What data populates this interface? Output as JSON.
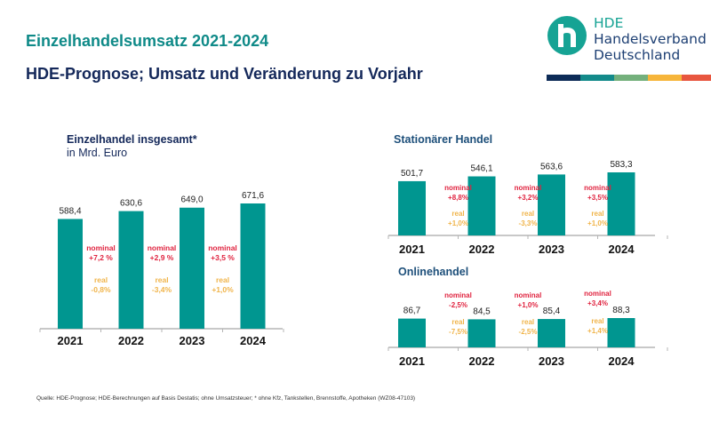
{
  "header": {
    "title": "Einzelhandelsumsatz 2021-2024",
    "subtitle": "HDE-Prognose; Umsatz und Veränderung zu Vorjahr"
  },
  "logo": {
    "line1": "HDE",
    "line2": "Handelsverband",
    "line3": "Deutschland",
    "stripe_colors": [
      "#0d2b57",
      "#138a8a",
      "#74b07c",
      "#f6b53a",
      "#e8563f"
    ]
  },
  "colors": {
    "bar": "#009690",
    "nominal": "#e0233f",
    "real": "#f0b44a",
    "axis": "#b5b5b5"
  },
  "chart_data": [
    {
      "type": "bar",
      "title": "Einzelhandel insgesamt*",
      "subtitle": "in Mrd. Euro",
      "categories": [
        "2021",
        "2022",
        "2023",
        "2024"
      ],
      "values": [
        588.4,
        630.6,
        649.0,
        671.6
      ],
      "value_labels": [
        "588,4",
        "630,6",
        "649,0",
        "671,6"
      ],
      "changes": [
        {
          "nominal_label": "nominal",
          "nominal": "+7,2 %",
          "real_label": "real",
          "real": "-0,8%"
        },
        {
          "nominal_label": "nominal",
          "nominal": "+2,9 %",
          "real_label": "real",
          "real": "-3,4%"
        },
        {
          "nominal_label": "nominal",
          "nominal": "+3,5 %",
          "real_label": "real",
          "real": "+1,0%"
        }
      ],
      "unit": "Mrd. Euro"
    },
    {
      "type": "bar",
      "title": "Stationärer Handel",
      "categories": [
        "2021",
        "2022",
        "2023",
        "2024"
      ],
      "values": [
        501.7,
        546.1,
        563.6,
        583.3
      ],
      "value_labels": [
        "501,7",
        "546,1",
        "563,6",
        "583,3"
      ],
      "changes": [
        {
          "nominal_label": "nominal",
          "nominal": "+8,8%",
          "real_label": "real",
          "real": "+1,0%"
        },
        {
          "nominal_label": "nominal",
          "nominal": "+3,2%",
          "real_label": "real",
          "real": "-3,3%"
        },
        {
          "nominal_label": "nominal",
          "nominal": "+3,5%",
          "real_label": "real",
          "real": "+1,0%"
        }
      ]
    },
    {
      "type": "bar",
      "title": "Onlinehandel",
      "categories": [
        "2021",
        "2022",
        "2023",
        "2024"
      ],
      "values": [
        86.7,
        84.5,
        85.4,
        88.3
      ],
      "value_labels": [
        "86,7",
        "84,5",
        "85,4",
        "88,3"
      ],
      "changes": [
        {
          "nominal_label": "nominal",
          "nominal": "-2,5%",
          "real_label": "real",
          "real": "-7,5%"
        },
        {
          "nominal_label": "nominal",
          "nominal": "+1,0%",
          "real_label": "real",
          "real": "-2,5%"
        },
        {
          "nominal_label": "nominal",
          "nominal": "+3,4%",
          "real_label": "real",
          "real": "+1,4%"
        }
      ]
    }
  ],
  "footer": {
    "source": "Quelle: HDE-Prognose; HDE-Berechnungen auf Basis Destatis; ohne Umsatzsteuer; * ohne Kfz, Tankstellen, Brennstoffe, Apotheken (WZ08-47103)"
  }
}
